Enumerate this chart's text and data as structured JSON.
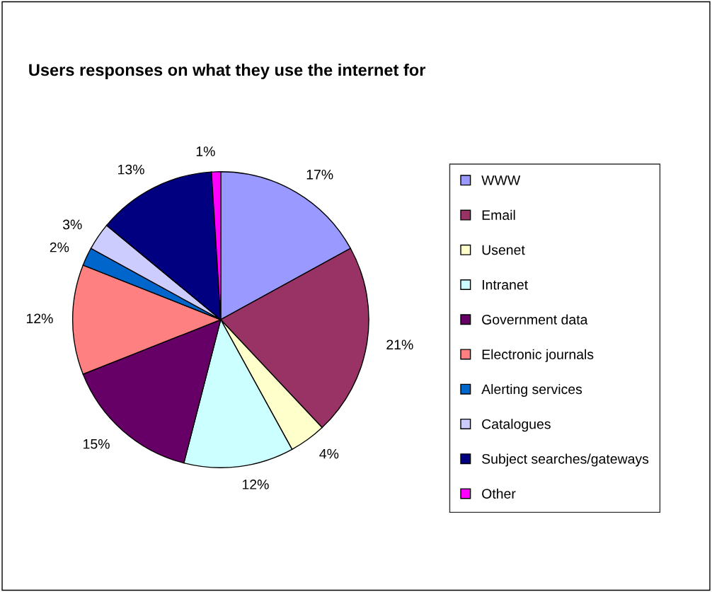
{
  "chart_data": {
    "type": "pie",
    "title": "Users responses on what they use the internet for",
    "categories": [
      "WWW",
      "Email",
      "Usenet",
      "Intranet",
      "Government data",
      "Electronic journals",
      "Alerting services",
      "Catalogues",
      "Subject searches/gateways",
      "Other"
    ],
    "values": [
      17,
      21,
      4,
      12,
      15,
      12,
      2,
      3,
      13,
      1
    ],
    "colors": [
      "#9999ff",
      "#993366",
      "#ffffcc",
      "#ccffff",
      "#660066",
      "#ff8080",
      "#0066cc",
      "#ccccff",
      "#000080",
      "#ff00ff"
    ],
    "value_labels": [
      "17%",
      "21%",
      "4%",
      "12%",
      "15%",
      "12%",
      "2%",
      "3%",
      "13%",
      "1%"
    ],
    "legend": "right"
  }
}
